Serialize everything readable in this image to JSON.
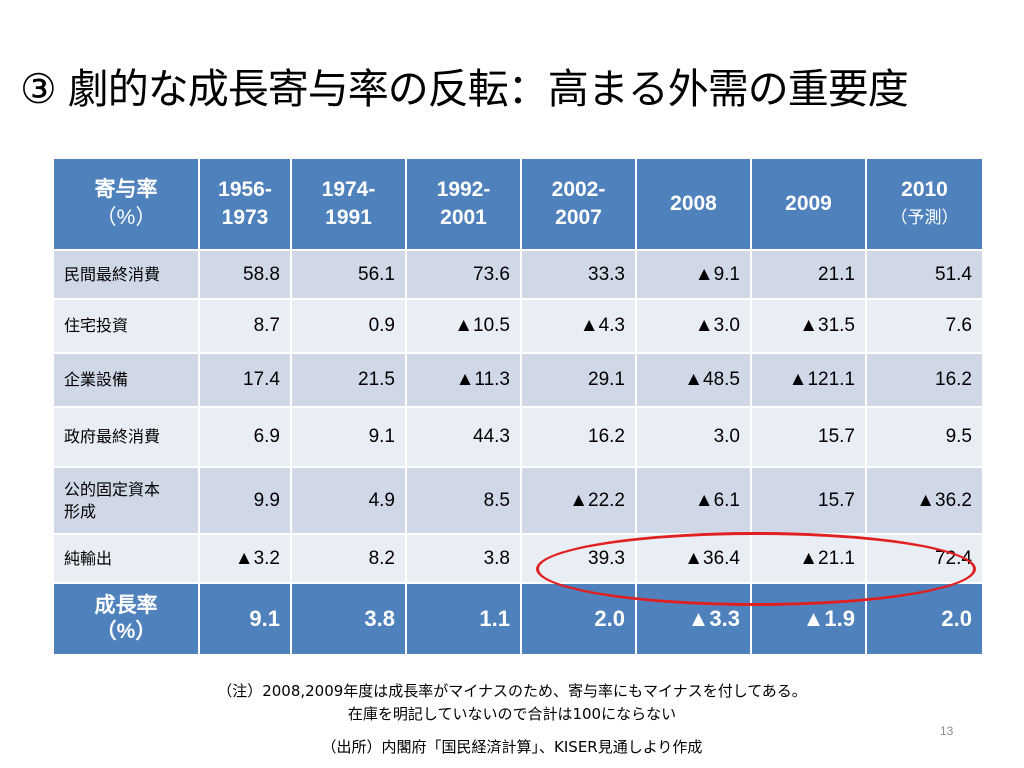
{
  "title": "③ 劇的な成長寄与率の反転：高まる外需の重要度",
  "table": {
    "header": {
      "corner": [
        "寄与率",
        "（%）"
      ],
      "periods": [
        {
          "line1": "1956-",
          "line2": "1973"
        },
        {
          "line1": "1974-",
          "line2": "1991"
        },
        {
          "line1": "1992-",
          "line2": "2001"
        },
        {
          "line1": "2002-",
          "line2": "2007"
        },
        {
          "line1": "2008",
          "line2": ""
        },
        {
          "line1": "2009",
          "line2": ""
        },
        {
          "line1": "2010",
          "line2": "（予測）"
        }
      ]
    },
    "rows": [
      {
        "label": "民間最終消費",
        "values": [
          "58.8",
          "56.1",
          "73.6",
          "33.3",
          "▲9.1",
          "21.1",
          "51.4"
        ]
      },
      {
        "label": "住宅投資",
        "values": [
          "8.7",
          "0.9",
          "▲10.5",
          "▲4.3",
          "▲3.0",
          "▲31.5",
          "7.6"
        ]
      },
      {
        "label": "企業設備",
        "values": [
          "17.4",
          "21.5",
          "▲11.3",
          "29.1",
          "▲48.5",
          "▲121.1",
          "16.2"
        ]
      },
      {
        "label": "政府最終消費",
        "values": [
          "6.9",
          "9.1",
          "44.3",
          "16.2",
          "3.0",
          "15.7",
          "9.5"
        ]
      },
      {
        "label": "公的固定資本形成",
        "label_line1": "公的固定資本",
        "label_line2": "形成",
        "values": [
          "9.9",
          "4.9",
          "8.5",
          "▲22.2",
          "▲6.1",
          "15.7",
          "▲36.2"
        ]
      },
      {
        "label": "純輸出",
        "values": [
          "▲3.2",
          "8.2",
          "3.8",
          "39.3",
          "▲36.4",
          "▲21.1",
          "72.4"
        ]
      }
    ],
    "footer": {
      "label": [
        "成長率",
        "（%）"
      ],
      "values": [
        "9.1",
        "3.8",
        "1.1",
        "2.0",
        "▲3.3",
        "▲1.9",
        "2.0"
      ]
    }
  },
  "notes": {
    "note1": "（注）2008,2009年度は成長率がマイナスのため、寄与率にもマイナスを付してある。",
    "note2": "在庫を明記していないので合計は100にならない",
    "source": "（出所）内閣府「国民経済計算」、KISER見通しより作成"
  },
  "page_number": "13",
  "colors": {
    "header_blue": "#4f81bd",
    "row_dark": "#d0d8e8",
    "row_light": "#e9edf4",
    "highlight_red": "#e02020"
  }
}
